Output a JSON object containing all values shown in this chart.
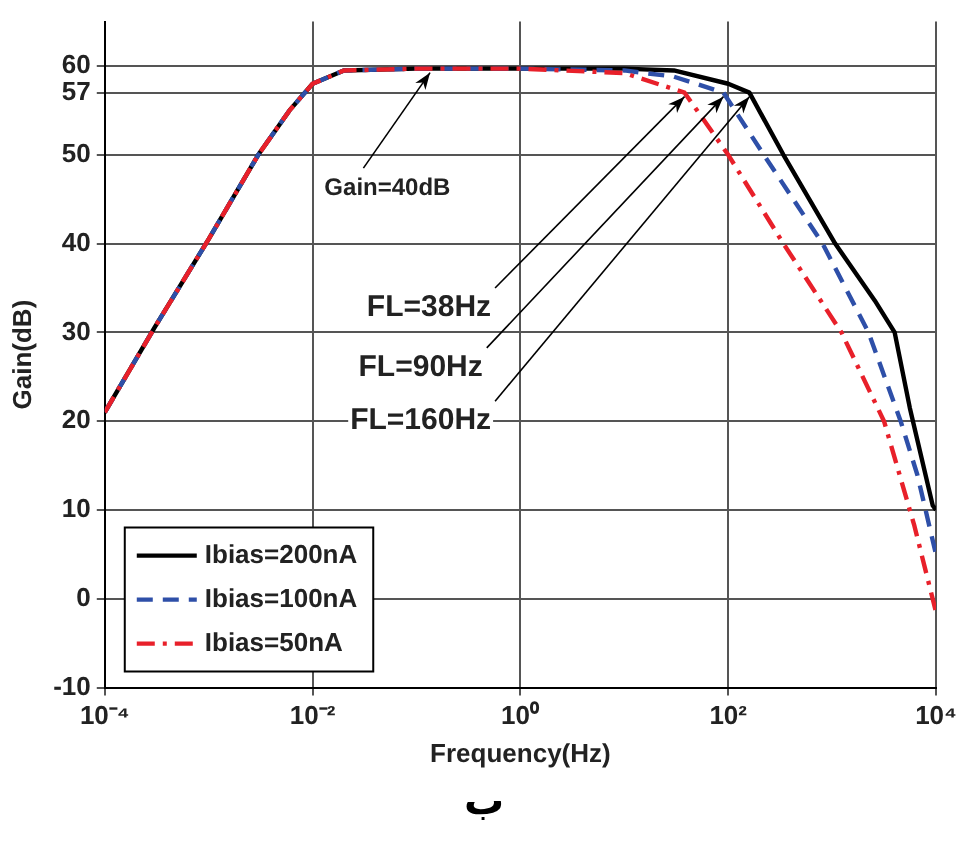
{
  "chart_data": {
    "type": "line",
    "xlabel": "Frequency(Hz)",
    "ylabel": "Gain(dB)",
    "log": "x",
    "xlim": [
      0.0001,
      10000
    ],
    "xticks": [
      {
        "value": 0.0001,
        "label": "10⁻⁴"
      },
      {
        "value": 0.01,
        "label": "10⁻²"
      },
      {
        "value": 1,
        "label": "10⁰"
      },
      {
        "value": 100,
        "label": "10²"
      },
      {
        "value": 10000,
        "label": "10⁴"
      }
    ],
    "ylim": [
      -10,
      65
    ],
    "yticks": [
      -10,
      0,
      10,
      20,
      30,
      40,
      50,
      57,
      60
    ],
    "grid": true,
    "legend": "bottom left",
    "marker": "none",
    "series": [
      {
        "name": "Ibias=200nA",
        "color": "#000000",
        "line_style": "solid",
        "x": [
          0.0001,
          0.0003,
          0.001,
          0.003,
          0.006,
          0.01,
          0.02,
          0.1,
          1,
          10,
          30,
          100,
          160,
          340,
          1070,
          2570,
          4000,
          5600,
          9300,
          10000
        ],
        "values": [
          21,
          30.5,
          40.5,
          50,
          55,
          58,
          59.5,
          59.7,
          59.7,
          59.7,
          59.5,
          58,
          57,
          50,
          40,
          33.6,
          30,
          21.5,
          10.5,
          10
        ]
      },
      {
        "name": "Ibias=100nA",
        "color": "#2e4fa8",
        "line_style": "dashed",
        "x": [
          0.0001,
          0.0003,
          0.001,
          0.003,
          0.006,
          0.01,
          0.02,
          0.1,
          1,
          10,
          30,
          90,
          220,
          810,
          2240,
          4570,
          6600,
          10000
        ],
        "values": [
          21,
          30.5,
          40.5,
          50,
          55,
          58,
          59.5,
          59.7,
          59.7,
          59.5,
          58.8,
          57,
          50,
          40,
          30,
          20,
          14,
          5
        ]
      },
      {
        "name": "Ibias=50nA",
        "color": "#e8202a",
        "line_style": "dashdot",
        "x": [
          0.0001,
          0.0003,
          0.001,
          0.003,
          0.006,
          0.01,
          0.02,
          0.1,
          1,
          10,
          38,
          100,
          340,
          1230,
          3160,
          6200,
          10000
        ],
        "values": [
          21,
          30.5,
          40.5,
          50,
          55,
          58,
          59.5,
          59.7,
          59.7,
          59.2,
          57,
          50,
          40,
          30,
          20,
          8.2,
          -1.5
        ]
      }
    ],
    "annotations": [
      {
        "text": "Gain=40dB",
        "x": 0.135,
        "y": 59.7
      },
      {
        "text": "FL=38Hz",
        "x": 38,
        "y": 57
      },
      {
        "text": "FL=90Hz",
        "x": 90,
        "y": 57
      },
      {
        "text": "FL=160Hz",
        "x": 160,
        "y": 57
      },
      "ب"
    ]
  }
}
